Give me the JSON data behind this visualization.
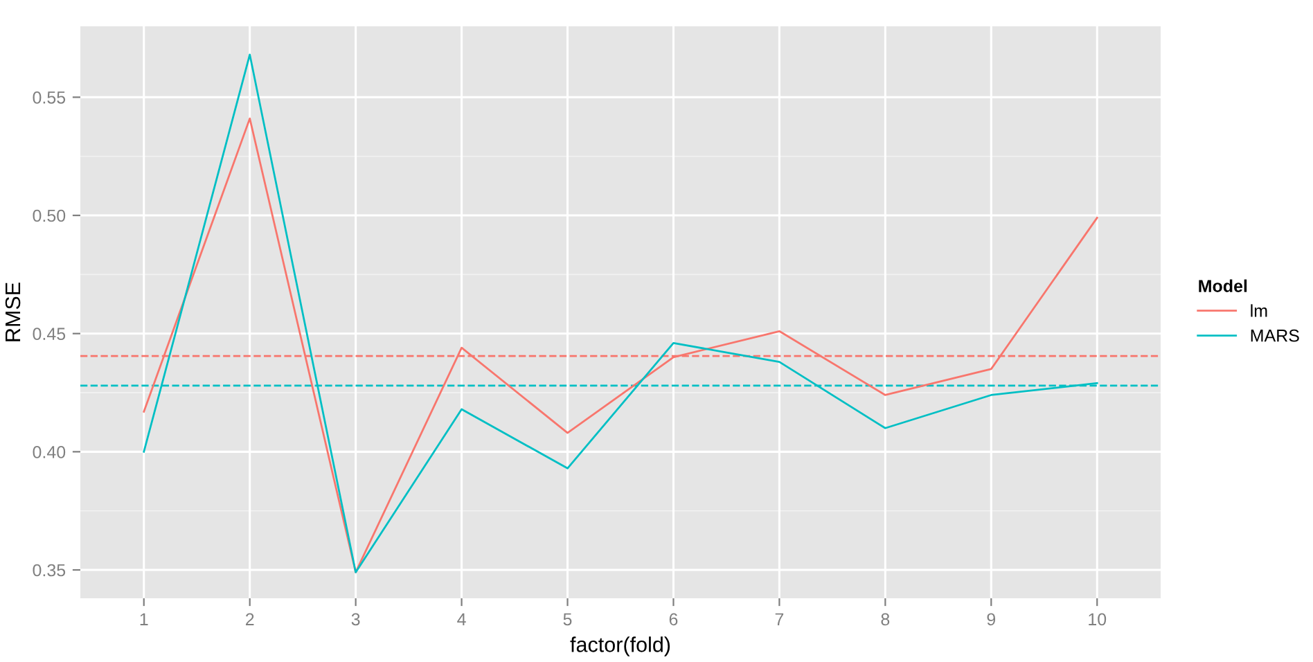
{
  "chart_data": {
    "type": "line",
    "xlabel": "factor(fold)",
    "ylabel": "RMSE",
    "legend_title": "Model",
    "categories": [
      "1",
      "2",
      "3",
      "4",
      "5",
      "6",
      "7",
      "8",
      "9",
      "10"
    ],
    "series": [
      {
        "name": "lm",
        "color": "#f8766d",
        "values": [
          0.417,
          0.541,
          0.349,
          0.444,
          0.408,
          0.44,
          0.451,
          0.424,
          0.435,
          0.499
        ]
      },
      {
        "name": "MARS",
        "color": "#00bfc4",
        "values": [
          0.4,
          0.568,
          0.349,
          0.418,
          0.393,
          0.446,
          0.438,
          0.41,
          0.424,
          0.429
        ]
      }
    ],
    "ref_lines": [
      {
        "axis": "y",
        "value": 0.4405,
        "label": null,
        "color": "#f8766d",
        "line_style": "dashed"
      },
      {
        "axis": "y",
        "value": 0.428,
        "label": null,
        "color": "#00bfc4",
        "line_style": "dashed"
      }
    ],
    "ylim": [
      0.338,
      0.58
    ],
    "yticks": [
      0.35,
      {
        "value": 0.4,
        "label": "0.40"
      },
      0.45,
      {
        "value": 0.5,
        "label": "0.50"
      },
      0.55
    ],
    "grid": true,
    "legend": "right",
    "line_style": "solid",
    "marker": "none"
  }
}
